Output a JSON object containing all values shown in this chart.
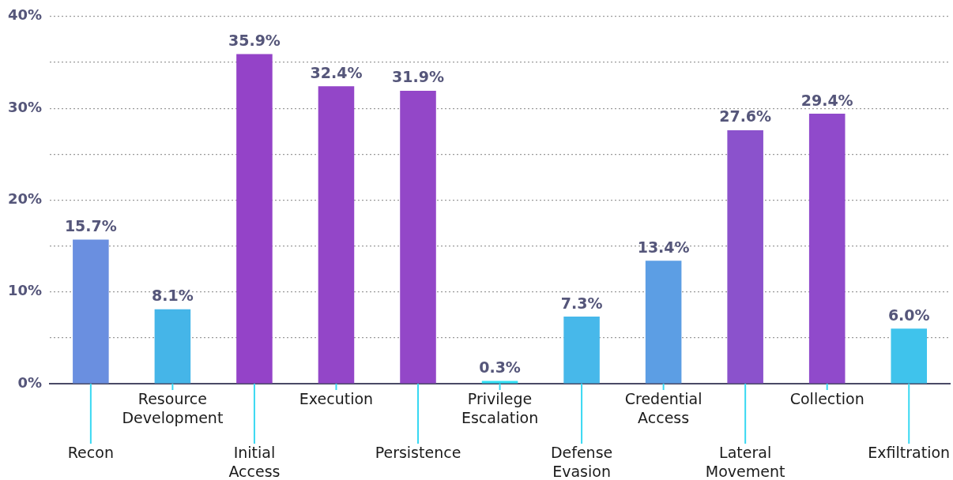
{
  "chart_data": {
    "type": "bar",
    "categories": [
      "Recon",
      "Resource Development",
      "Initial Access",
      "Execution",
      "Persistence",
      "Privilege Escalation",
      "Defense Evasion",
      "Credential Access",
      "Lateral Movement",
      "Collection",
      "Exfiltration"
    ],
    "values": [
      15.7,
      8.1,
      35.9,
      32.4,
      31.9,
      0.3,
      7.3,
      13.4,
      27.6,
      29.4,
      6.0
    ],
    "value_labels": [
      "15.7%",
      "8.1%",
      "35.9%",
      "32.4%",
      "31.9%",
      "0.3%",
      "7.3%",
      "13.4%",
      "27.6%",
      "29.4%",
      "6.0%"
    ],
    "colors": [
      "#6a8fe0",
      "#45b5e8",
      "#9443c8",
      "#9346c8",
      "#9347c8",
      "#30e0f5",
      "#47b8ea",
      "#5c9ee4",
      "#8b52cc",
      "#904acb",
      "#3fc3ec"
    ],
    "ylim": [
      0,
      40
    ],
    "yticks": [
      {
        "value": 0,
        "label": "0%"
      },
      {
        "value": 5,
        "label": null
      },
      {
        "value": 10,
        "label": "10%"
      },
      {
        "value": 15,
        "label": null
      },
      {
        "value": 20,
        "label": "20%"
      },
      {
        "value": 25,
        "label": null
      },
      {
        "value": 30,
        "label": "30%"
      },
      {
        "value": 35,
        "label": null
      },
      {
        "value": 40,
        "label": "40%"
      }
    ],
    "grid": "y",
    "legend": false
  }
}
